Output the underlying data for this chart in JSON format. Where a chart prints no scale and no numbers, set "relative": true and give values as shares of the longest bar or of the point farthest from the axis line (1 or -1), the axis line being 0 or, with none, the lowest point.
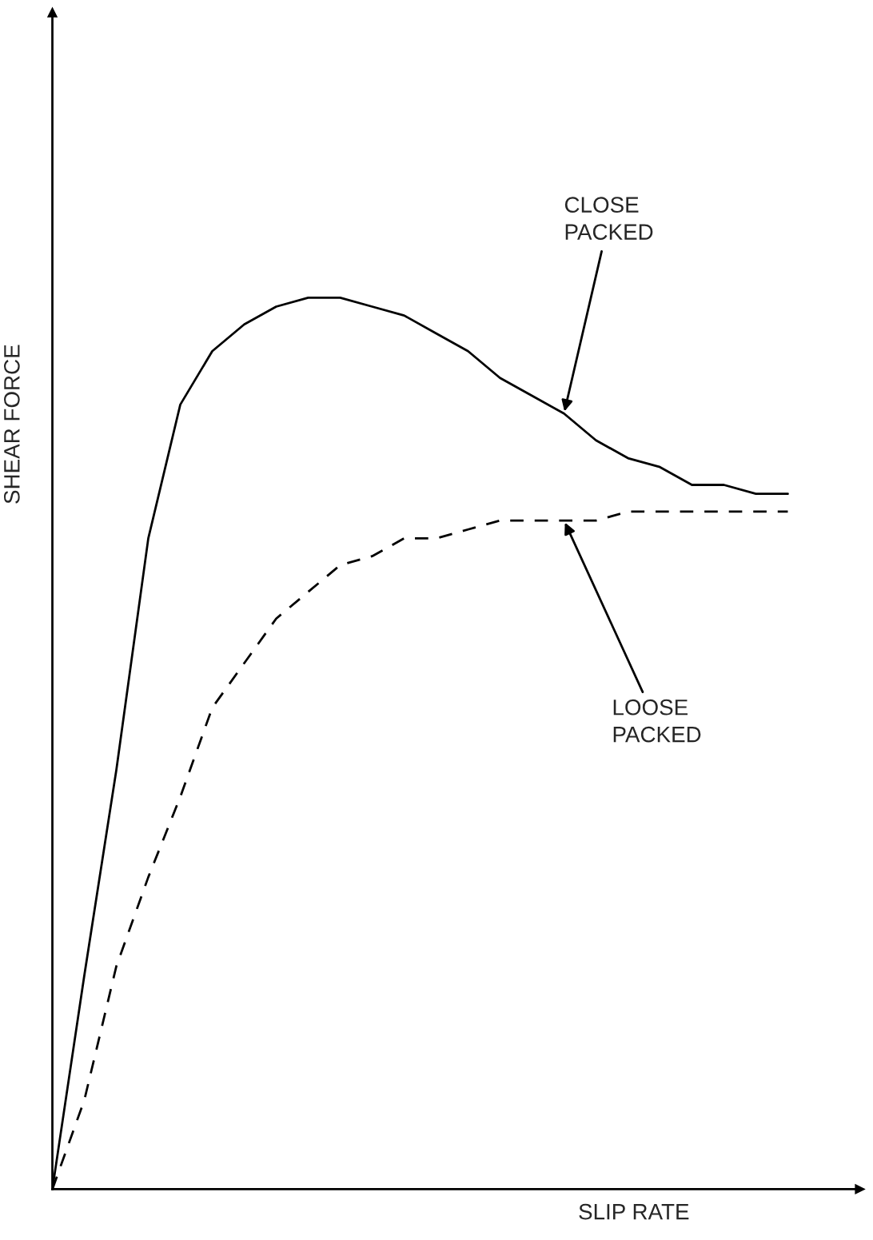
{
  "chart_data": {
    "type": "line",
    "relative": true,
    "xlabel": "SLIP RATE",
    "ylabel": "SHEAR FORCE",
    "categories": [
      null,
      null,
      null,
      null,
      null,
      null,
      null,
      null,
      null,
      null,
      null,
      null,
      null,
      null,
      null,
      null,
      null,
      null,
      null,
      null,
      null,
      null,
      null,
      null
    ],
    "series": [
      {
        "color": "#000000",
        "line_style": "solid",
        "values": [
          0,
          0.24,
          0.47,
          0.73,
          0.88,
          0.94,
          0.97,
          0.99,
          1,
          1,
          0.99,
          0.98,
          0.96,
          0.94,
          0.91,
          0.89,
          0.87,
          0.84,
          0.82,
          0.81,
          0.79,
          0.79,
          0.78,
          0.78
        ]
      },
      {
        "color": "#000000",
        "line_style": "dashed",
        "values": [
          0,
          0.1,
          0.25,
          0.35,
          0.44,
          0.54,
          0.59,
          0.64,
          0.67,
          0.7,
          0.71,
          0.73,
          0.73,
          0.74,
          0.75,
          0.75,
          0.75,
          0.75,
          0.76,
          0.76,
          0.76,
          0.76,
          0.76,
          0.76
        ]
      }
    ],
    "annotations": [
      "CLOSE\nPACKED",
      "LOOSE\nPACKED"
    ],
    "marker": "none"
  }
}
